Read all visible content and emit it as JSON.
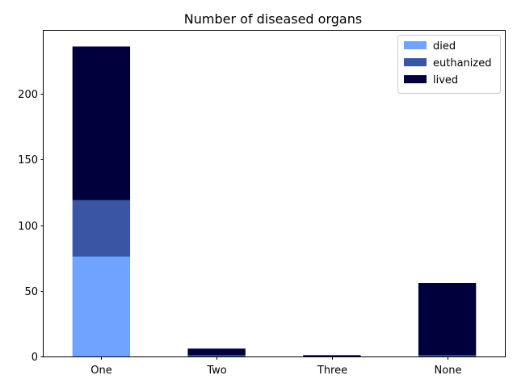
{
  "chart_data": {
    "type": "bar",
    "stacked": true,
    "title": "Number of diseased organs",
    "xlabel": "",
    "ylabel": "",
    "categories": [
      "One",
      "Two",
      "Three",
      "None"
    ],
    "series": [
      {
        "name": "died",
        "values": [
          76,
          0,
          0,
          0
        ],
        "color": "#6fa3ff"
      },
      {
        "name": "euthanized",
        "values": [
          43,
          1,
          0,
          1
        ],
        "color": "#3a55a3"
      },
      {
        "name": "lived",
        "values": [
          117,
          5,
          1,
          55
        ],
        "color": "#00003c"
      }
    ],
    "ylim": [
      0,
      248
    ],
    "yticks": [
      0,
      50,
      100,
      150,
      200
    ],
    "grid": false,
    "legend_position": "top-right"
  }
}
